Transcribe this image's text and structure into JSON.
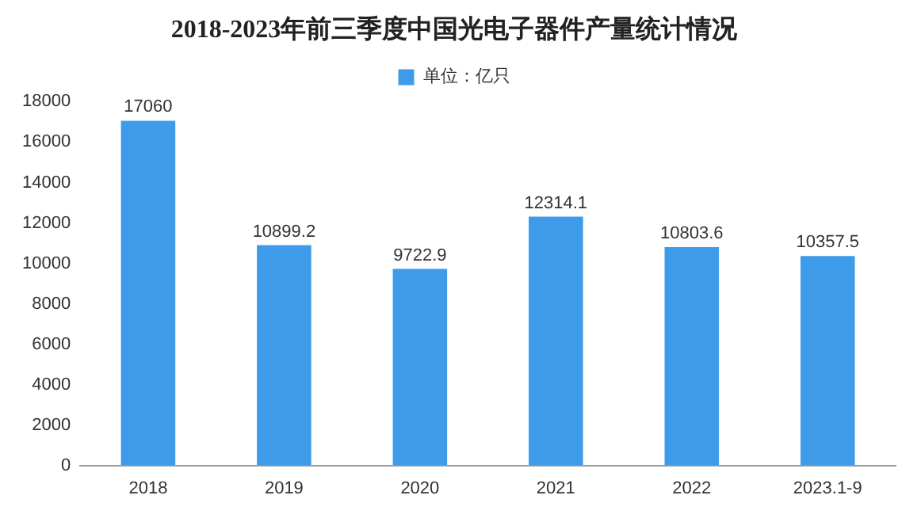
{
  "chart_data": {
    "type": "bar",
    "title": "2018-2023年前三季度中国光电子器件产量统计情况",
    "categories": [
      "2018",
      "2019",
      "2020",
      "2021",
      "2022",
      "2023.1-9"
    ],
    "series": [
      {
        "name": "单位：亿只",
        "color": "#3d9be9",
        "values": [
          17060,
          10899.2,
          9722.9,
          12314.1,
          10803.6,
          10357.5
        ]
      }
    ],
    "ylim": [
      0,
      18000
    ],
    "yticks": [
      0,
      2000,
      4000,
      6000,
      8000,
      10000,
      12000,
      14000,
      16000,
      18000
    ],
    "grid": false,
    "legend": "top",
    "data_labels": true
  }
}
